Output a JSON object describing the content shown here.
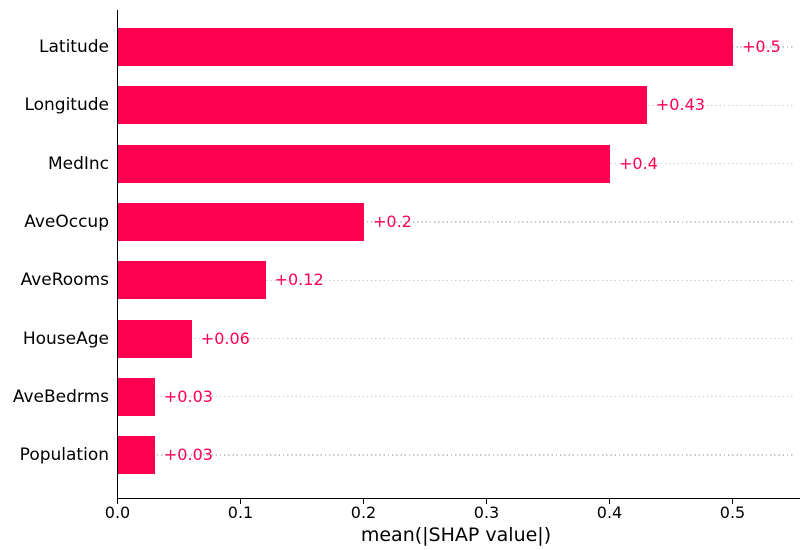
{
  "chart_data": {
    "type": "bar",
    "orientation": "horizontal",
    "title": "",
    "xlabel": "mean(|SHAP value|)",
    "ylabel": "",
    "categories": [
      "Latitude",
      "Longitude",
      "MedInc",
      "AveOccup",
      "AveRooms",
      "HouseAge",
      "AveBedrms",
      "Population"
    ],
    "values": [
      0.5,
      0.43,
      0.4,
      0.2,
      0.12,
      0.06,
      0.03,
      0.03
    ],
    "value_labels": [
      "+0.5",
      "+0.43",
      "+0.4",
      "+0.2",
      "+0.12",
      "+0.06",
      "+0.03",
      "+0.03"
    ],
    "x_ticks": [
      0.0,
      0.1,
      0.2,
      0.3,
      0.4,
      0.5
    ],
    "x_tick_labels": [
      "0.0",
      "0.1",
      "0.2",
      "0.3",
      "0.4",
      "0.5"
    ],
    "xlim": [
      0,
      0.55
    ],
    "grid": "horizontal dotted lines, one per bar row",
    "legend_position": "none",
    "colors": {
      "bar": "#ff0051",
      "value_label": "#ff0051",
      "gridline": "#c9c9c9",
      "axis": "#000000",
      "text": "#000000",
      "background": "#ffffff"
    }
  }
}
